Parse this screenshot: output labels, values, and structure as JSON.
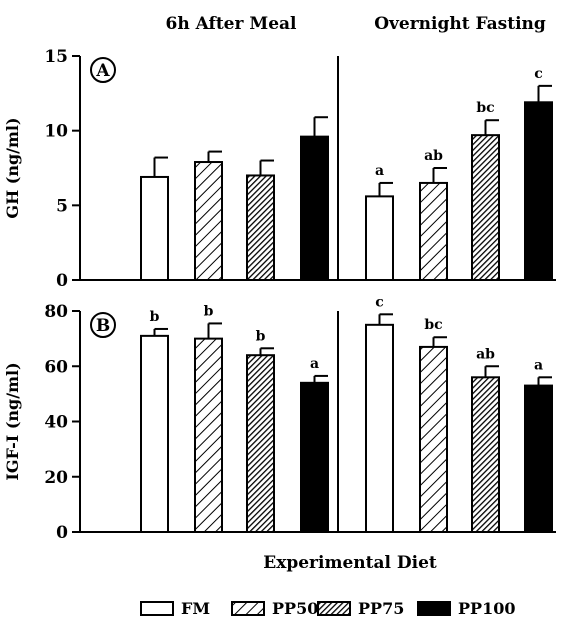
{
  "header": {
    "left_title": "6h After Meal",
    "right_title": "Overnight Fasting"
  },
  "xlabel": "Experimental Diet",
  "legend": [
    "FM",
    "PP50",
    "PP75",
    "PP100"
  ],
  "chart_data": [
    {
      "type": "bar",
      "panel_label": "A",
      "ylabel": "GH (ng/ml)",
      "ylim": [
        0,
        15
      ],
      "yticks": [
        "0",
        "5",
        "10",
        "15"
      ],
      "categories": [
        "FM",
        "PP50",
        "PP75",
        "PP100"
      ],
      "groups": [
        {
          "title": "6h After Meal",
          "values": [
            6.9,
            7.9,
            7.0,
            9.6
          ],
          "errors": [
            1.3,
            0.7,
            1.0,
            1.3
          ],
          "letters": [
            "",
            "",
            "",
            ""
          ]
        },
        {
          "title": "Overnight Fasting",
          "values": [
            5.6,
            6.5,
            9.7,
            11.9
          ],
          "errors": [
            0.9,
            1.0,
            1.0,
            1.1
          ],
          "letters": [
            "a",
            "ab",
            "bc",
            "c"
          ]
        }
      ]
    },
    {
      "type": "bar",
      "panel_label": "B",
      "ylabel": "IGF-I (ng/ml)",
      "ylim": [
        0,
        80
      ],
      "yticks": [
        "0",
        "20",
        "40",
        "60",
        "80"
      ],
      "categories": [
        "FM",
        "PP50",
        "PP75",
        "PP100"
      ],
      "groups": [
        {
          "title": "6h After Meal",
          "values": [
            71,
            70,
            64,
            54
          ],
          "errors": [
            2.5,
            5.5,
            2.5,
            2.5
          ],
          "letters": [
            "b",
            "b",
            "b",
            "a"
          ]
        },
        {
          "title": "Overnight Fasting",
          "values": [
            75,
            67,
            56,
            53
          ],
          "errors": [
            3.8,
            3.5,
            4.0,
            3.0
          ],
          "letters": [
            "c",
            "bc",
            "ab",
            "a"
          ]
        }
      ]
    }
  ],
  "fills": [
    "#ffffff",
    "hatch-light",
    "hatch-dense",
    "#000000"
  ]
}
